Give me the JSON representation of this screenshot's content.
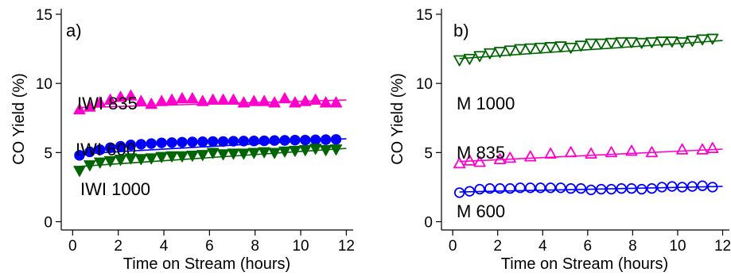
{
  "chart_data": [
    {
      "type": "scatter",
      "panel_label": "a)",
      "xlabel": "Time on Stream (hours)",
      "ylabel": "CO Yield (%)",
      "xlim": [
        -0.5,
        12.3
      ],
      "ylim": [
        -0.6,
        15.4
      ],
      "xticks": [
        0,
        2,
        4,
        6,
        8,
        10,
        12
      ],
      "yticks": [
        0,
        5,
        10,
        15
      ],
      "grid": false,
      "series": [
        {
          "name": "IWI 835",
          "color": "#ff00cc",
          "marker": "triangle-up",
          "filled": true,
          "x": [
            0.3,
            0.75,
            1.2,
            1.65,
            2.1,
            2.55,
            3.0,
            3.45,
            3.9,
            4.35,
            4.8,
            5.25,
            5.7,
            6.15,
            6.6,
            7.05,
            7.5,
            7.95,
            8.4,
            8.85,
            9.3,
            9.75,
            10.2,
            10.65,
            11.1,
            11.55
          ],
          "y": [
            8.1,
            8.3,
            8.6,
            8.8,
            9.0,
            9.1,
            8.7,
            8.5,
            8.7,
            8.8,
            8.9,
            8.9,
            8.7,
            8.8,
            8.8,
            8.8,
            8.6,
            8.7,
            8.7,
            8.6,
            8.9,
            8.6,
            8.7,
            8.8,
            8.6,
            8.6
          ],
          "fit": {
            "x": [
              0.3,
              12.0
            ],
            "y": [
              8.25,
              8.8
            ]
          },
          "label": "IWI 835"
        },
        {
          "name": "IWI 600",
          "color": "#0000ff",
          "marker": "circle",
          "filled": true,
          "x": [
            0.3,
            0.75,
            1.2,
            1.65,
            2.1,
            2.55,
            3.0,
            3.45,
            3.9,
            4.35,
            4.8,
            5.25,
            5.7,
            6.15,
            6.6,
            7.05,
            7.5,
            7.95,
            8.4,
            8.85,
            9.3,
            9.75,
            10.2,
            10.65,
            11.1,
            11.55
          ],
          "y": [
            4.8,
            5.05,
            5.2,
            5.35,
            5.45,
            5.55,
            5.6,
            5.65,
            5.7,
            5.72,
            5.75,
            5.77,
            5.78,
            5.8,
            5.8,
            5.82,
            5.83,
            5.84,
            5.85,
            5.87,
            5.88,
            5.9,
            5.9,
            5.92,
            5.93,
            5.95
          ],
          "fit": {
            "x": [
              0.3,
              12.0
            ],
            "y": [
              4.9,
              6.0
            ]
          },
          "label": "IWI 600"
        },
        {
          "name": "IWI 1000",
          "color": "#006400",
          "marker": "triangle-down",
          "filled": true,
          "x": [
            0.3,
            0.75,
            1.2,
            1.65,
            2.1,
            2.55,
            3.0,
            3.45,
            3.9,
            4.35,
            4.8,
            5.25,
            5.7,
            6.15,
            6.6,
            7.05,
            7.5,
            7.95,
            8.4,
            8.85,
            9.3,
            9.75,
            10.2,
            10.65,
            11.1,
            11.55
          ],
          "y": [
            3.7,
            4.1,
            4.3,
            4.4,
            4.5,
            4.6,
            4.55,
            4.6,
            4.7,
            4.75,
            4.75,
            4.8,
            4.85,
            5.0,
            4.9,
            4.95,
            4.95,
            5.0,
            5.05,
            5.0,
            5.1,
            5.15,
            5.2,
            5.3,
            5.2,
            5.25
          ],
          "fit": {
            "x": [
              0.3,
              12.0
            ],
            "y": [
              4.0,
              5.3
            ]
          },
          "label": "IWI 1000"
        }
      ]
    },
    {
      "type": "scatter",
      "panel_label": "b)",
      "xlabel": "Time on Stream (hours)",
      "ylabel": "CO Yield (%)",
      "xlim": [
        -0.5,
        12.3
      ],
      "ylim": [
        -0.6,
        15.4
      ],
      "xticks": [
        0,
        2,
        4,
        6,
        8,
        10,
        12
      ],
      "yticks": [
        0,
        5,
        10,
        15
      ],
      "grid": false,
      "series": [
        {
          "name": "M 1000",
          "color": "#006400",
          "marker": "triangle-down",
          "filled": false,
          "x": [
            0.3,
            0.75,
            1.2,
            1.65,
            2.1,
            2.55,
            3.0,
            3.45,
            3.9,
            4.35,
            4.8,
            5.25,
            5.7,
            6.15,
            6.6,
            7.05,
            7.5,
            7.95,
            8.4,
            8.85,
            9.3,
            9.75,
            10.2,
            10.65,
            11.1,
            11.55
          ],
          "y": [
            11.7,
            11.8,
            12.0,
            12.2,
            12.3,
            12.4,
            12.5,
            12.55,
            12.6,
            12.65,
            12.7,
            12.6,
            12.75,
            12.9,
            12.9,
            12.95,
            13.0,
            13.0,
            12.95,
            13.0,
            13.05,
            13.05,
            13.0,
            13.1,
            13.2,
            13.25
          ],
          "fit": {
            "x": [
              0.3,
              12.0
            ],
            "y": [
              11.8,
              13.1
            ]
          },
          "label": "M 1000"
        },
        {
          "name": "M 835",
          "color": "#ff00cc",
          "marker": "triangle-up",
          "filled": false,
          "x": [
            0.3,
            0.75,
            1.2,
            2.1,
            2.55,
            3.45,
            4.35,
            5.25,
            6.15,
            7.05,
            7.95,
            8.85,
            10.2,
            11.1,
            11.55
          ],
          "y": [
            4.2,
            4.4,
            4.3,
            4.5,
            4.6,
            4.7,
            4.9,
            5.0,
            4.9,
            5.0,
            5.1,
            5.0,
            5.2,
            5.2,
            5.3
          ],
          "fit": {
            "x": [
              0.3,
              12.0
            ],
            "y": [
              4.35,
              5.25
            ]
          },
          "label": "M 835"
        },
        {
          "name": "M 600",
          "color": "#0000ff",
          "marker": "circle",
          "filled": false,
          "x": [
            0.3,
            0.75,
            1.2,
            1.65,
            2.1,
            2.55,
            3.0,
            3.45,
            3.9,
            4.35,
            4.8,
            5.25,
            5.7,
            6.15,
            6.6,
            7.05,
            7.5,
            7.95,
            8.4,
            8.85,
            9.3,
            9.75,
            10.2,
            10.65,
            11.1,
            11.55
          ],
          "y": [
            2.1,
            2.2,
            2.35,
            2.4,
            2.4,
            2.4,
            2.45,
            2.45,
            2.45,
            2.45,
            2.45,
            2.4,
            2.4,
            2.3,
            2.35,
            2.35,
            2.4,
            2.4,
            2.35,
            2.4,
            2.5,
            2.55,
            2.5,
            2.55,
            2.6,
            2.5
          ],
          "fit": {
            "x": [
              0.3,
              12.0
            ],
            "y": [
              2.15,
              2.55
            ]
          },
          "label": "M 600"
        }
      ]
    }
  ]
}
